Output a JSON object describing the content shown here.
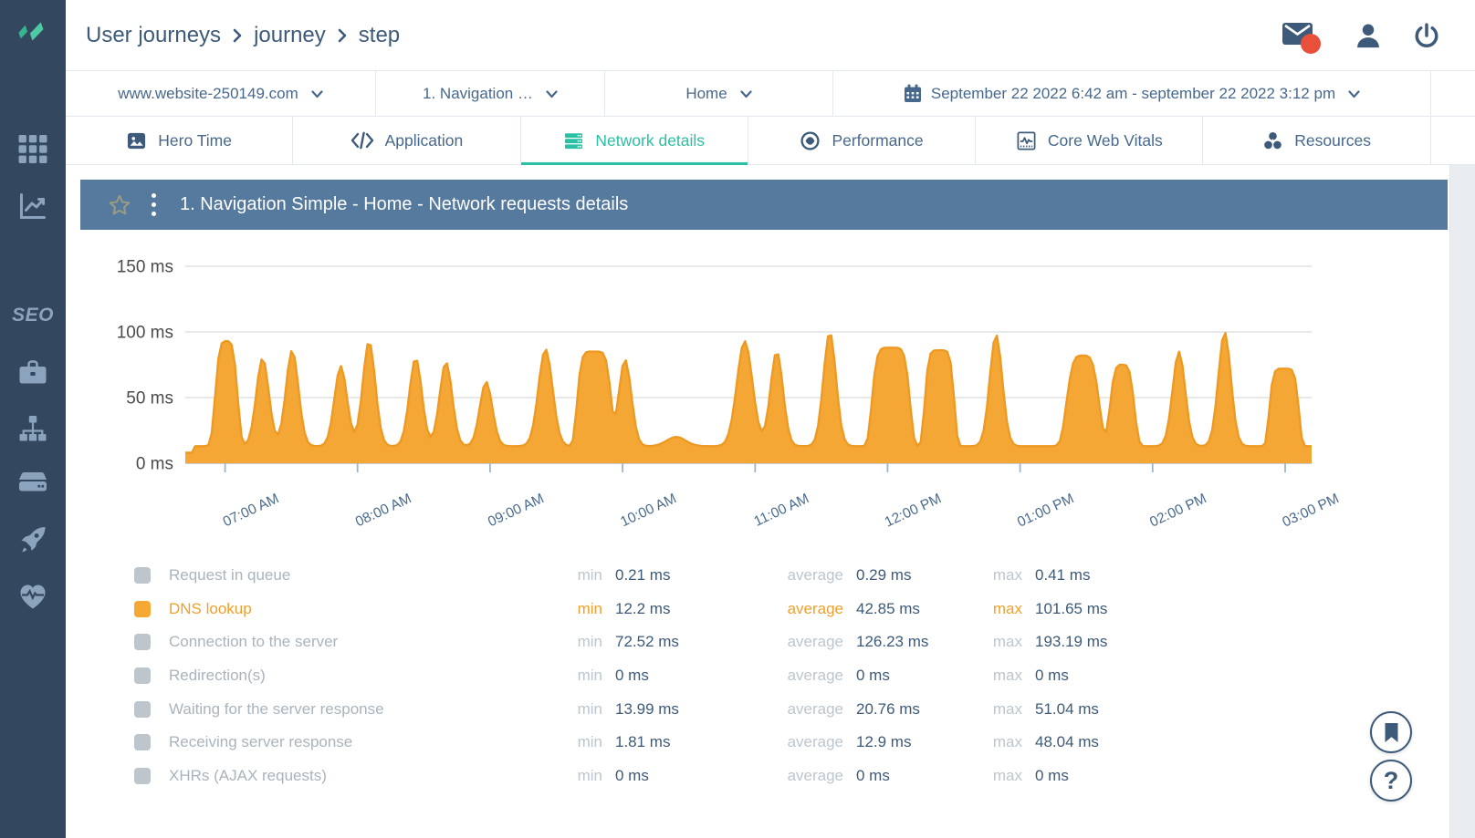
{
  "colors": {
    "sidebar_bg": "#33475E",
    "sidebar_icon": "#8BA3BD",
    "logo_leaf_dark": "#38B48E",
    "logo_leaf_light": "#4FC9A4",
    "ink": "#3E5A7A",
    "teal_active": "#2BBFA4",
    "panel_header_bg": "#567A9E",
    "badge_red": "#E8503C",
    "orange_fill": "#F4A735",
    "orange_stroke": "#EE9A22",
    "orange_text": "#F0A02C",
    "key_gray": "#BCC6CE",
    "value_ink": "#3D5A78",
    "label_gray": "#A9B4BD",
    "grid_line": "#D3D3D3",
    "axis_line": "#B3BFCA",
    "tick_mark": "#9FB6C9",
    "y_label": "#4A4A4A",
    "x_label": "#4A6B8E",
    "border": "#E2E9EF",
    "star": "#9A9C83",
    "strip": "#E9EDF0",
    "filter_text": "#47688C"
  },
  "sidebar": {
    "seo_label": "SEO"
  },
  "header": {
    "breadcrumb": [
      "User journeys",
      "journey",
      "step"
    ]
  },
  "filters": [
    {
      "label": "www.website-250149.com"
    },
    {
      "label": "1. Navigation …"
    },
    {
      "label": "Home"
    },
    {
      "label": "September 22 2022 6:42 am - september 22 2022 3:12 pm"
    }
  ],
  "tabs": [
    {
      "label": "Hero Time",
      "active": false
    },
    {
      "label": "Application",
      "active": false
    },
    {
      "label": "Network details",
      "active": true
    },
    {
      "label": "Performance",
      "active": false
    },
    {
      "label": "Core Web Vitals",
      "active": false
    },
    {
      "label": "Resources",
      "active": false
    }
  ],
  "panel": {
    "title": "1. Navigation Simple - Home - Network requests details"
  },
  "chart_data": {
    "type": "area",
    "series_name": "DNS lookup",
    "unit": "ms",
    "title": "1. Navigation Simple - Home - Network requests details",
    "ylim": [
      0,
      163
    ],
    "grid": true,
    "legend_position": "bottom",
    "yticks": [
      {
        "value": 0,
        "label": "0 ms"
      },
      {
        "value": 50,
        "label": "50 ms"
      },
      {
        "value": 100,
        "label": "100 ms"
      },
      {
        "value": 150,
        "label": "150 ms"
      }
    ],
    "x_start": "6:42 am",
    "x_end": "3:12 pm",
    "x_total_minutes": 510,
    "xticks": [
      {
        "minute": 18,
        "label": "07:00 AM"
      },
      {
        "minute": 78,
        "label": "08:00 AM"
      },
      {
        "minute": 138,
        "label": "09:00 AM"
      },
      {
        "minute": 198,
        "label": "10:00 AM"
      },
      {
        "minute": 258,
        "label": "11:00 AM"
      },
      {
        "minute": 318,
        "label": "12:00 PM"
      },
      {
        "minute": 378,
        "label": "01:00 PM"
      },
      {
        "minute": 438,
        "label": "02:00 PM"
      },
      {
        "minute": 498,
        "label": "03:00 PM"
      }
    ],
    "baseline_ms": 13,
    "lead_in": {
      "until_minute": 4,
      "value": 8
    },
    "peaks": [
      {
        "t": 18.6,
        "h": 93,
        "w": 5.5,
        "p": 4
      },
      {
        "t": 35.0,
        "h": 80,
        "w": 4,
        "p": 2
      },
      {
        "t": 48.4,
        "h": 86,
        "w": 4,
        "p": 2
      },
      {
        "t": 70.4,
        "h": 74,
        "w": 4,
        "p": 2
      },
      {
        "t": 83.2,
        "h": 93,
        "w": 4,
        "p": 2
      },
      {
        "t": 104.3,
        "h": 80,
        "w": 4,
        "p": 2
      },
      {
        "t": 118.0,
        "h": 77,
        "w": 4,
        "p": 2
      },
      {
        "t": 136.2,
        "h": 62,
        "w": 4,
        "p": 2
      },
      {
        "t": 163.1,
        "h": 87,
        "w": 4.5,
        "p": 2
      },
      {
        "t": 185.0,
        "h": 85,
        "w": 8,
        "p": 6
      },
      {
        "t": 199.1,
        "h": 79,
        "w": 4,
        "p": 2
      },
      {
        "t": 222.3,
        "h": 20,
        "w": 6,
        "p": 2
      },
      {
        "t": 253.3,
        "h": 93,
        "w": 5,
        "p": 2
      },
      {
        "t": 267.8,
        "h": 85,
        "w": 4,
        "p": 2
      },
      {
        "t": 291.8,
        "h": 100,
        "w": 4,
        "p": 2
      },
      {
        "t": 319.5,
        "h": 88,
        "w": 9,
        "p": 6
      },
      {
        "t": 341.5,
        "h": 86,
        "w": 7,
        "p": 6
      },
      {
        "t": 367.1,
        "h": 98,
        "w": 4,
        "p": 2
      },
      {
        "t": 406.4,
        "h": 82,
        "w": 8,
        "p": 4
      },
      {
        "t": 424.2,
        "h": 75,
        "w": 6,
        "p": 4
      },
      {
        "t": 449.9,
        "h": 85,
        "w": 4,
        "p": 2
      },
      {
        "t": 470.6,
        "h": 100,
        "w": 4,
        "p": 2
      },
      {
        "t": 497.5,
        "h": 72,
        "w": 7,
        "p": 6
      }
    ]
  },
  "legend": {
    "keys": {
      "min": "min",
      "average": "average",
      "max": "max"
    },
    "rows": [
      {
        "label": "Request in queue",
        "min": "0.21 ms",
        "average": "0.29 ms",
        "max": "0.41 ms",
        "swatch": "#BDC6CD",
        "highlight": false
      },
      {
        "label": "DNS lookup",
        "min": "12.2 ms",
        "average": "42.85 ms",
        "max": "101.65 ms",
        "swatch": "#F5A832",
        "highlight": true
      },
      {
        "label": "Connection to the server",
        "min": "72.52 ms",
        "average": "126.23 ms",
        "max": "193.19 ms",
        "swatch": "#BDC6CD",
        "highlight": false
      },
      {
        "label": "Redirection(s)",
        "min": "0 ms",
        "average": "0 ms",
        "max": "0 ms",
        "swatch": "#BDC6CD",
        "highlight": false
      },
      {
        "label": "Waiting for the server response",
        "min": "13.99 ms",
        "average": "20.76 ms",
        "max": "51.04 ms",
        "swatch": "#BDC6CD",
        "highlight": false
      },
      {
        "label": "Receiving server response",
        "min": "1.81 ms",
        "average": "12.9 ms",
        "max": "48.04 ms",
        "swatch": "#BDC6CD",
        "highlight": false
      },
      {
        "label": "XHRs (AJAX requests)",
        "min": "0 ms",
        "average": "0 ms",
        "max": "0 ms",
        "swatch": "#BDC6CD",
        "highlight": false
      }
    ]
  },
  "floating": {
    "help_label": "?"
  }
}
